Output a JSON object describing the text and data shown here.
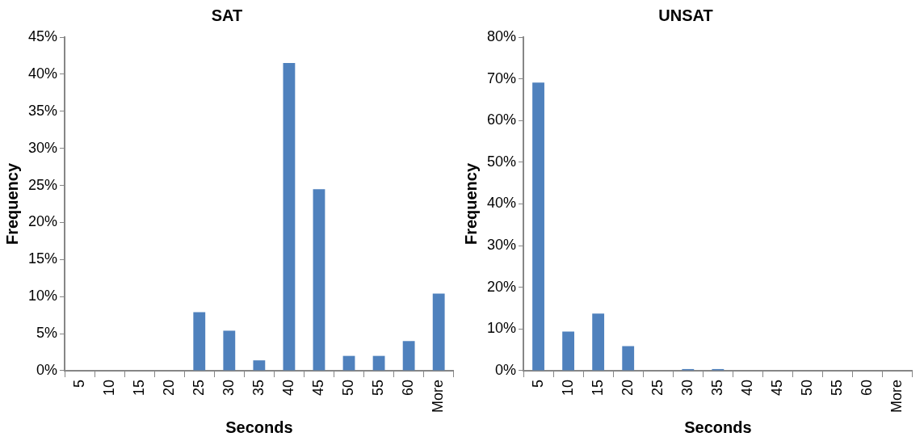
{
  "chart_data": [
    {
      "type": "bar",
      "title": "SAT",
      "xlabel": "Seconds",
      "ylabel": "Frequency",
      "categories": [
        "5",
        "10",
        "15",
        "20",
        "25",
        "30",
        "35",
        "40",
        "45",
        "50",
        "55",
        "60",
        "More"
      ],
      "values": [
        0,
        0,
        0,
        0,
        7.9,
        5.4,
        1.4,
        41.5,
        24.5,
        2.0,
        2.0,
        4.0,
        10.4
      ],
      "color": "#4f81bd",
      "ylim": [
        0,
        45
      ],
      "yticks": [
        {
          "value": 0,
          "label": "0%"
        },
        {
          "value": 5,
          "label": "5%"
        },
        {
          "value": 10,
          "label": "10%"
        },
        {
          "value": 15,
          "label": "15%"
        },
        {
          "value": 20,
          "label": "20%"
        },
        {
          "value": 25,
          "label": "25%"
        },
        {
          "value": 30,
          "label": "30%"
        },
        {
          "value": 35,
          "label": "35%"
        },
        {
          "value": 40,
          "label": "40%"
        },
        {
          "value": 45,
          "label": "45%"
        }
      ],
      "grid": false,
      "legend": false
    },
    {
      "type": "bar",
      "title": "UNSAT",
      "xlabel": "Seconds",
      "ylabel": "Frequency",
      "categories": [
        "5",
        "10",
        "15",
        "20",
        "25",
        "30",
        "35",
        "40",
        "45",
        "50",
        "55",
        "60",
        "More"
      ],
      "values": [
        69.1,
        9.4,
        13.7,
        5.9,
        0,
        0.4,
        0.4,
        0,
        0,
        0,
        0,
        0,
        0
      ],
      "color": "#4f81bd",
      "ylim": [
        0,
        80
      ],
      "yticks": [
        {
          "value": 0,
          "label": "0%"
        },
        {
          "value": 10,
          "label": "10%"
        },
        {
          "value": 20,
          "label": "20%"
        },
        {
          "value": 30,
          "label": "30%"
        },
        {
          "value": 40,
          "label": "40%"
        },
        {
          "value": 50,
          "label": "50%"
        },
        {
          "value": 60,
          "label": "60%"
        },
        {
          "value": 70,
          "label": "70%"
        },
        {
          "value": 80,
          "label": "80%"
        }
      ],
      "grid": false,
      "legend": false
    }
  ]
}
